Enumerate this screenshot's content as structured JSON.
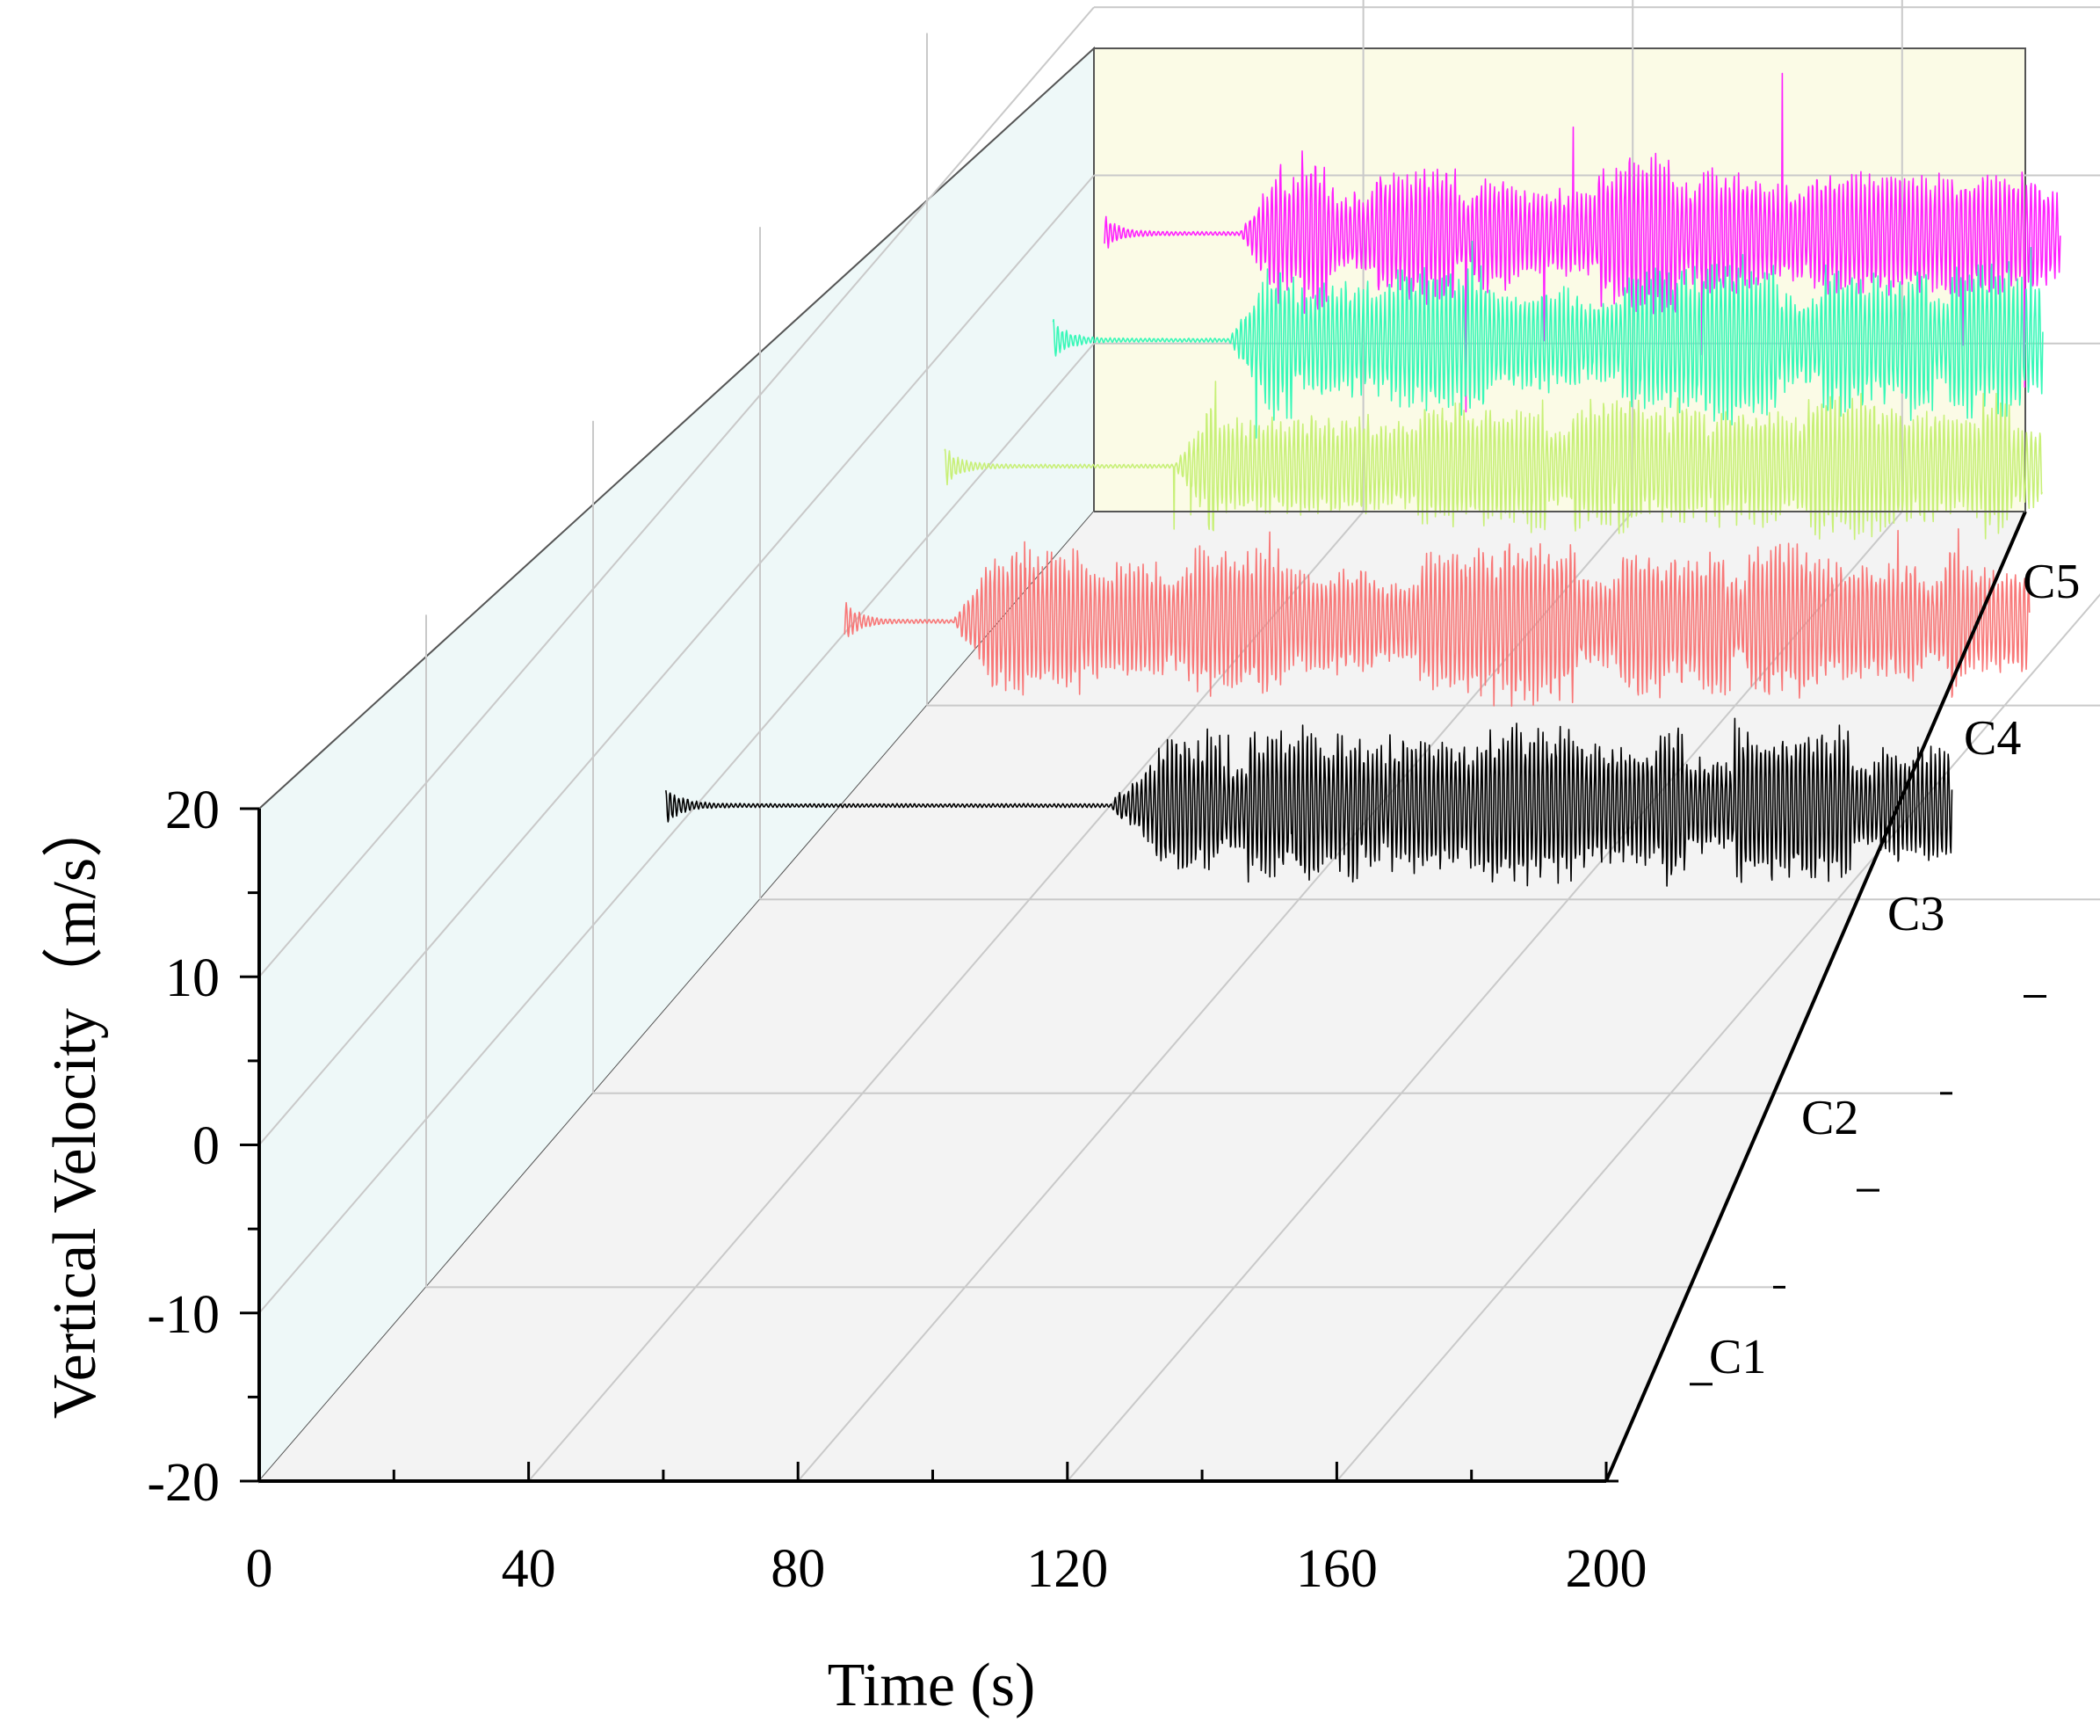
{
  "chart_data": {
    "type": "3d-waterfall-line",
    "title": "",
    "xlabel": "Time (s)",
    "ylabel": "Vertical Velocity（m/s）",
    "xlim": [
      0,
      200
    ],
    "ylim": [
      -20,
      20
    ],
    "x_ticks": [
      "0",
      "40",
      "80",
      "120",
      "160",
      "200"
    ],
    "y_ticks": [
      "20",
      "10",
      "0",
      "-10",
      "-20"
    ],
    "z_categories": [
      "C1",
      "C2",
      "C3",
      "C4",
      "C5"
    ],
    "series": [
      {
        "name": "C1",
        "color": "#000000",
        "precursor_start": 17,
        "onset": 83,
        "end": 208,
        "precursor_amp": 1.2,
        "amplitude": 4.5,
        "peak_amp": 7
      },
      {
        "name": "C2",
        "color": "#f87878",
        "precursor_start": 20,
        "onset": 36,
        "end": 196,
        "precursor_amp": 1.2,
        "amplitude": 4.5,
        "peak_amp": 7
      },
      {
        "name": "C3",
        "color": "#c8f078",
        "precursor_start": 15,
        "onset": 49,
        "end": 178,
        "precursor_amp": 1.2,
        "amplitude": 4,
        "peak_amp": 5.5
      },
      {
        "name": "C4",
        "color": "#38f8b8",
        "precursor_start": 15,
        "onset": 41,
        "end": 162,
        "precursor_amp": 1.2,
        "amplitude": 4.5,
        "peak_amp": 7
      },
      {
        "name": "C5",
        "color": "#ff20ff",
        "precursor_start": 9,
        "onset": 29,
        "end": 151,
        "precursor_amp": 1,
        "amplitude": 4.5,
        "peak_amp": 11
      }
    ]
  }
}
